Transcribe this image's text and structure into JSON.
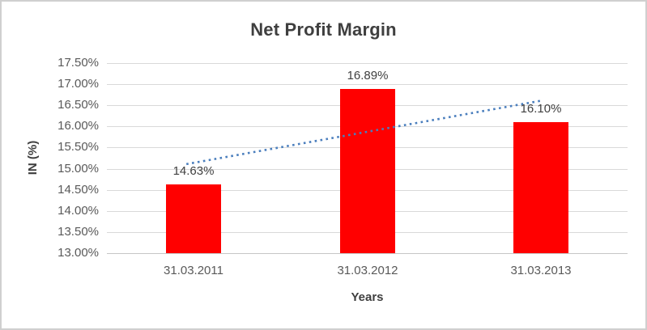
{
  "window": {
    "background": "#ffffff",
    "frame_border_color": "#cfcfcf"
  },
  "chart_data": {
    "type": "bar",
    "title": "Net Profit Margin",
    "xlabel": "Years",
    "ylabel": "IN (%)",
    "categories": [
      "31.03.2011",
      "31.03.2012",
      "31.03.2013"
    ],
    "series": [
      {
        "name": "IN (%)",
        "color": "#ff0000",
        "values": [
          14.63,
          16.89,
          16.1
        ]
      }
    ],
    "data_labels": [
      "14.63%",
      "16.89%",
      "16.10%"
    ],
    "ylim": [
      13.0,
      17.5
    ],
    "ytick_step": 0.5,
    "ytick_labels": [
      "13.00%",
      "13.50%",
      "14.00%",
      "14.50%",
      "15.00%",
      "15.50%",
      "16.00%",
      "16.50%",
      "17.00%",
      "17.50%"
    ],
    "grid": true,
    "gridline_color": "#d9d9d9",
    "axisline_color": "#c6c6c6",
    "legend_position": "none",
    "trendline": {
      "type": "linear",
      "style": "dotted",
      "color": "#4a7ebd"
    }
  }
}
